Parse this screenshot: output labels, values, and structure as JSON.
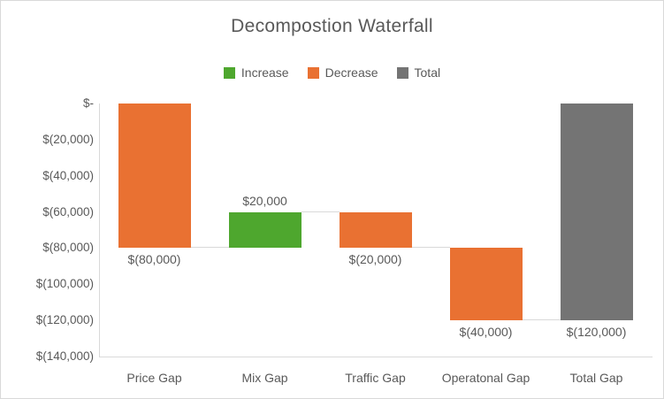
{
  "chart_data": {
    "type": "bar",
    "subtype": "waterfall",
    "title": "Decompostion Waterfall",
    "xlabel": "",
    "ylabel": "",
    "grid": false,
    "legend_position": "top",
    "categories": [
      "Price Gap",
      "Mix Gap",
      "Traffic Gap",
      "Operatonal Gap",
      "Total Gap"
    ],
    "values": [
      -80000,
      20000,
      -20000,
      -40000,
      -120000
    ],
    "bars": [
      {
        "category": "Price Gap",
        "value": -80000,
        "label": "$(80,000)",
        "role": "decrease",
        "start": 0,
        "end": -80000
      },
      {
        "category": "Mix Gap",
        "value": 20000,
        "label": "$20,000",
        "role": "increase",
        "start": -80000,
        "end": -60000
      },
      {
        "category": "Traffic Gap",
        "value": -20000,
        "label": "$(20,000)",
        "role": "decrease",
        "start": -60000,
        "end": -80000
      },
      {
        "category": "Operatonal Gap",
        "value": -40000,
        "label": "$(40,000)",
        "role": "decrease",
        "start": -80000,
        "end": -120000
      },
      {
        "category": "Total Gap",
        "value": -120000,
        "label": "$(120,000)",
        "role": "total",
        "start": 0,
        "end": -120000
      }
    ],
    "legend": [
      {
        "label": "Increase",
        "role": "increase"
      },
      {
        "label": "Decrease",
        "role": "decrease"
      },
      {
        "label": "Total",
        "role": "total"
      }
    ],
    "colors": {
      "increase": "#4EA72E",
      "decrease": "#E97132",
      "total": "#747474"
    },
    "y_axis": {
      "min": -140000,
      "max": 0,
      "ticks": [
        {
          "value": 0,
          "label": "$-"
        },
        {
          "value": -20000,
          "label": "$(20,000)"
        },
        {
          "value": -40000,
          "label": "$(40,000)"
        },
        {
          "value": -60000,
          "label": "$(60,000)"
        },
        {
          "value": -80000,
          "label": "$(80,000)"
        },
        {
          "value": -100000,
          "label": "$(100,000)"
        },
        {
          "value": -120000,
          "label": "$(120,000)"
        },
        {
          "value": -140000,
          "label": "$(140,000)"
        }
      ]
    },
    "axis_color": "#D9D9D9",
    "connector_color": "#D9D9D9",
    "text_color": "#595959"
  }
}
